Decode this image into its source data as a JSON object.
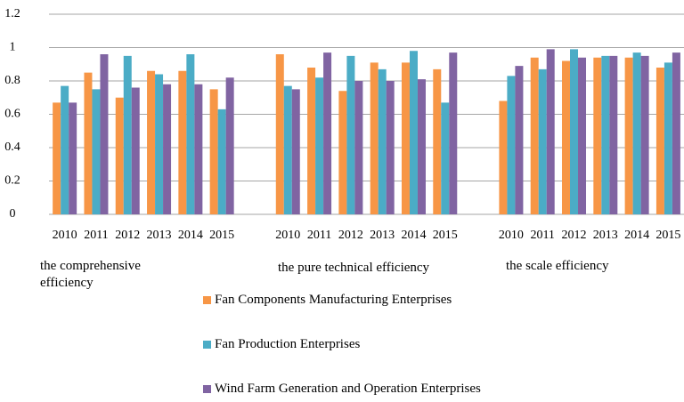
{
  "chart_data": {
    "type": "bar",
    "categories": [
      "2010",
      "2011",
      "2012",
      "2013",
      "2014",
      "2015",
      "2010",
      "2011",
      "2012",
      "2013",
      "2014",
      "2015",
      "2010",
      "2011",
      "2012",
      "2013",
      "2014",
      "2015"
    ],
    "group_labels": [
      "the comprehensive efficiency",
      "the pure technical efficiency",
      "the scale efficiency"
    ],
    "series": [
      {
        "name": "Fan Components Manufacturing Enterprises",
        "color": "#F79646",
        "values": [
          0.67,
          0.85,
          0.7,
          0.86,
          0.86,
          0.75,
          0.96,
          0.88,
          0.74,
          0.91,
          0.91,
          0.87,
          0.68,
          0.94,
          0.92,
          0.94,
          0.94,
          0.88
        ]
      },
      {
        "name": "Fan Production Enterprises",
        "color": "#4BACC6",
        "values": [
          0.77,
          0.75,
          0.95,
          0.84,
          0.96,
          0.63,
          0.77,
          0.82,
          0.95,
          0.87,
          0.98,
          0.67,
          0.83,
          0.87,
          0.99,
          0.95,
          0.97,
          0.91
        ]
      },
      {
        "name": "Wind Farm Generation and Operation Enterprises",
        "color": "#8064A2",
        "values": [
          0.67,
          0.96,
          0.76,
          0.78,
          0.78,
          0.82,
          0.75,
          0.97,
          0.8,
          0.8,
          0.81,
          0.97,
          0.89,
          0.99,
          0.94,
          0.95,
          0.95,
          0.97
        ]
      }
    ],
    "ylim": [
      0,
      1.2
    ],
    "yticks": [
      0,
      0.2,
      0.4,
      0.6,
      0.8,
      1,
      1.2
    ],
    "grid": true
  }
}
